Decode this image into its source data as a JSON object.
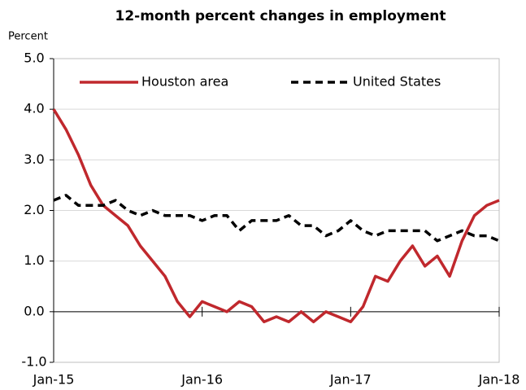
{
  "chart_data": {
    "type": "line",
    "title": "12-month percent changes in employment",
    "y_label": "Percent",
    "categories": [
      "Jan-15",
      null,
      null,
      null,
      null,
      null,
      null,
      null,
      null,
      null,
      null,
      null,
      "Jan-16",
      null,
      null,
      null,
      null,
      null,
      null,
      null,
      null,
      null,
      null,
      null,
      "Jan-17",
      null,
      null,
      null,
      null,
      null,
      null,
      null,
      null,
      null,
      null,
      null,
      "Jan-18"
    ],
    "series": [
      {
        "name": "Houston area",
        "color": "#c0282d",
        "dashed": false,
        "values": [
          4.0,
          3.6,
          3.1,
          2.5,
          2.1,
          1.9,
          1.7,
          1.3,
          1.0,
          0.7,
          0.2,
          -0.1,
          0.2,
          0.1,
          0.0,
          0.2,
          0.1,
          -0.2,
          -0.1,
          -0.2,
          0.0,
          -0.2,
          0.0,
          -0.1,
          -0.2,
          0.1,
          0.7,
          0.6,
          1.0,
          1.3,
          0.9,
          1.1,
          0.7,
          1.4,
          1.9,
          2.1,
          2.2
        ]
      },
      {
        "name": "United States",
        "color": "#000000",
        "dashed": true,
        "values": [
          2.2,
          2.3,
          2.1,
          2.1,
          2.1,
          2.2,
          2.0,
          1.9,
          2.0,
          1.9,
          1.9,
          1.9,
          1.8,
          1.9,
          1.9,
          1.6,
          1.8,
          1.8,
          1.8,
          1.9,
          1.7,
          1.7,
          1.5,
          1.6,
          1.8,
          1.6,
          1.5,
          1.6,
          1.6,
          1.6,
          1.6,
          1.4,
          1.5,
          1.6,
          1.5,
          1.5,
          1.4
        ]
      }
    ],
    "ylim": [
      -1,
      5
    ],
    "yticks": [
      {
        "value": -1,
        "label": "-1.0"
      },
      {
        "value": 0,
        "label": "0.0"
      },
      {
        "value": 1,
        "label": "1.0"
      },
      {
        "value": 2,
        "label": "2.0"
      },
      {
        "value": 3,
        "label": "3.0"
      },
      {
        "value": 4,
        "label": "4.0"
      },
      {
        "value": 5,
        "label": "5.0"
      }
    ],
    "grid": true,
    "legend": "top"
  }
}
